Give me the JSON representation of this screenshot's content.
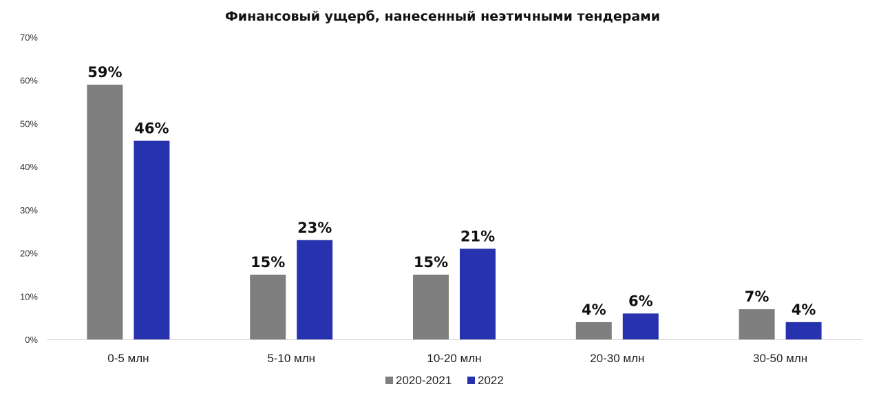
{
  "chart_data": {
    "type": "bar",
    "title": "Финансовый ущерб, нанесенный неэтичными тендерами",
    "categories": [
      "0-5 млн",
      "5-10 млн",
      "10-20 млн",
      "20-30 млн",
      "30-50 млн"
    ],
    "series": [
      {
        "name": "2020-2021",
        "color": "#7f7f7f",
        "values": [
          59,
          15,
          15,
          4,
          7
        ],
        "labels": [
          "59%",
          "15%",
          "15%",
          "4%",
          "7%"
        ]
      },
      {
        "name": "2022",
        "color": "#2733ae",
        "values": [
          46,
          23,
          21,
          6,
          4
        ],
        "labels": [
          "46%",
          "23%",
          "21%",
          "6%",
          "4%"
        ]
      }
    ],
    "yticks": [
      0,
      10,
      20,
      30,
      40,
      50,
      60,
      70
    ],
    "ytick_labels": [
      "0%",
      "10%",
      "20%",
      "30%",
      "40%",
      "50%",
      "60%",
      "70%"
    ],
    "ylim": [
      0,
      70
    ],
    "xlabel": "",
    "ylabel": "",
    "grid": false,
    "legend_position": "bottom-center"
  }
}
